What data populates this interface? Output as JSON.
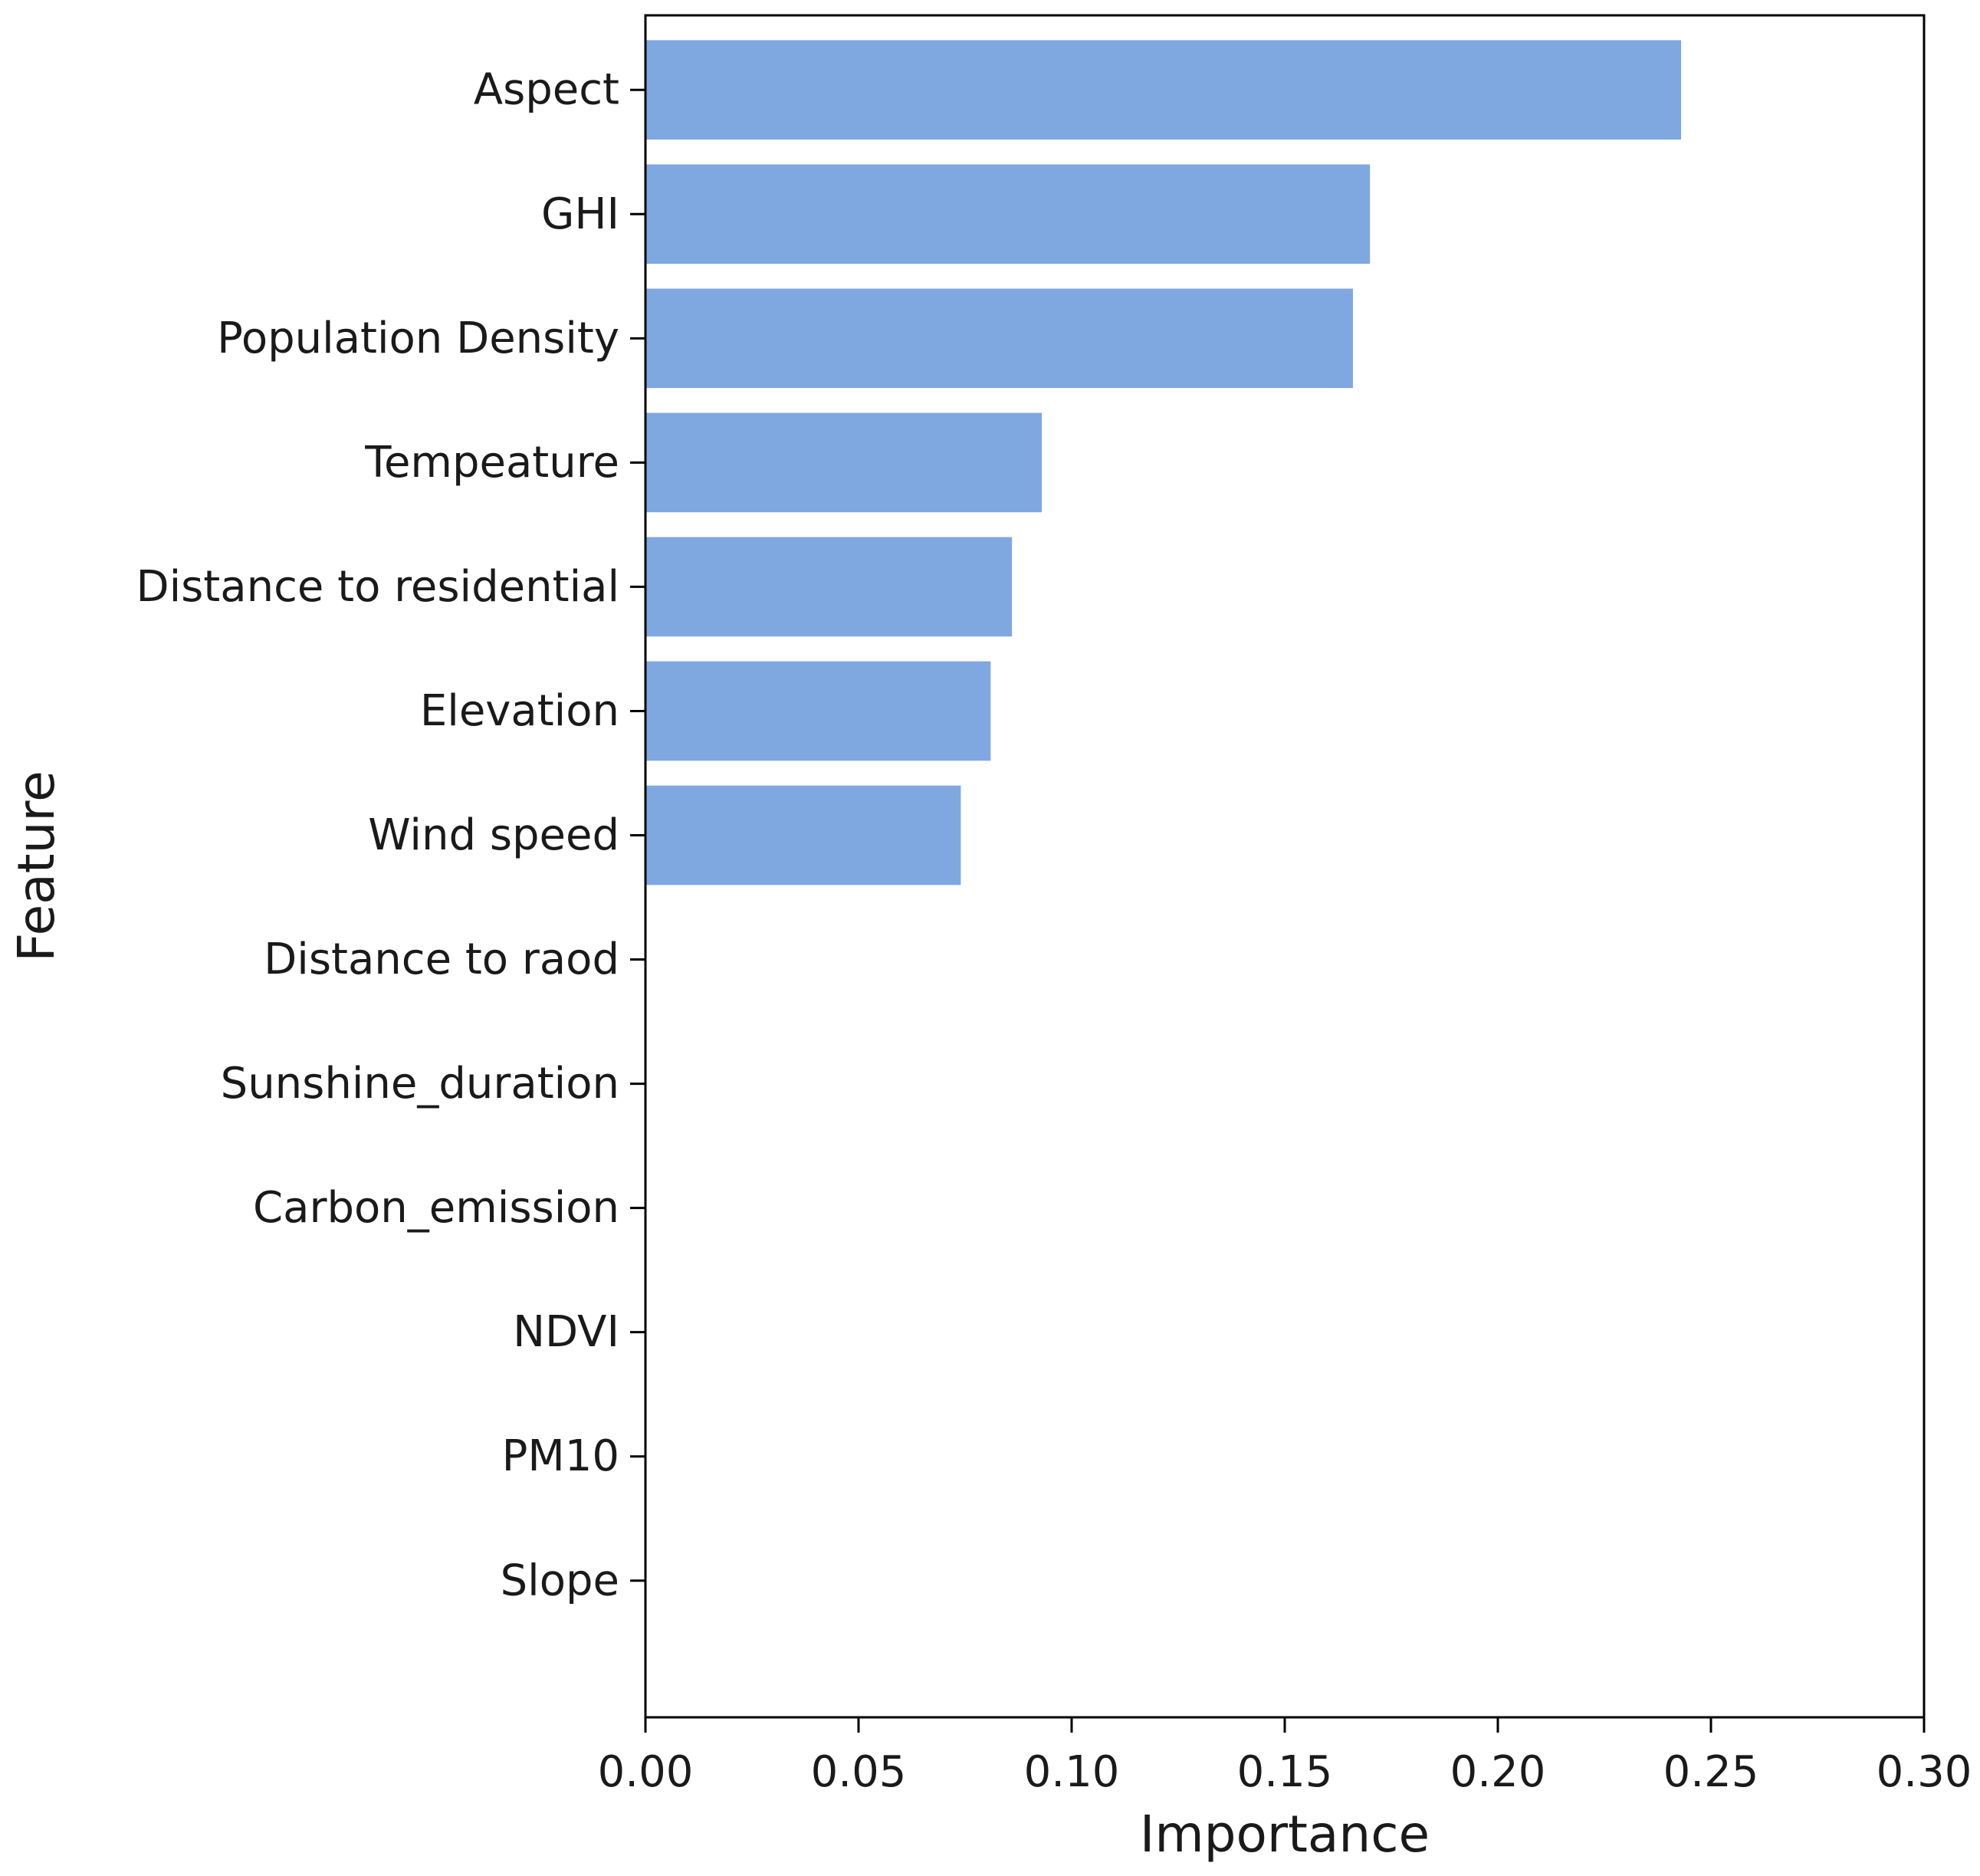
{
  "chart_data": {
    "type": "bar",
    "orientation": "horizontal",
    "xlabel": "Importance",
    "ylabel": "Feature",
    "xlim": [
      0.0,
      0.3
    ],
    "xticks": [
      "0.00",
      "0.05",
      "0.10",
      "0.15",
      "0.20",
      "0.25",
      "0.30"
    ],
    "categories": [
      "Aspect",
      "GHI",
      "Population Density",
      "Tempeature",
      "Distance to residential",
      "Elevation",
      "Wind speed",
      "Distance to raod",
      "Sunshine_duration",
      "Carbon_emission",
      "NDVI",
      "PM10",
      "Slope"
    ],
    "values": [
      0.243,
      0.17,
      0.166,
      0.093,
      0.086,
      0.081,
      0.074,
      0,
      0,
      0,
      0,
      0,
      0
    ],
    "bar_color": "#7fa7e0",
    "grid": false
  }
}
